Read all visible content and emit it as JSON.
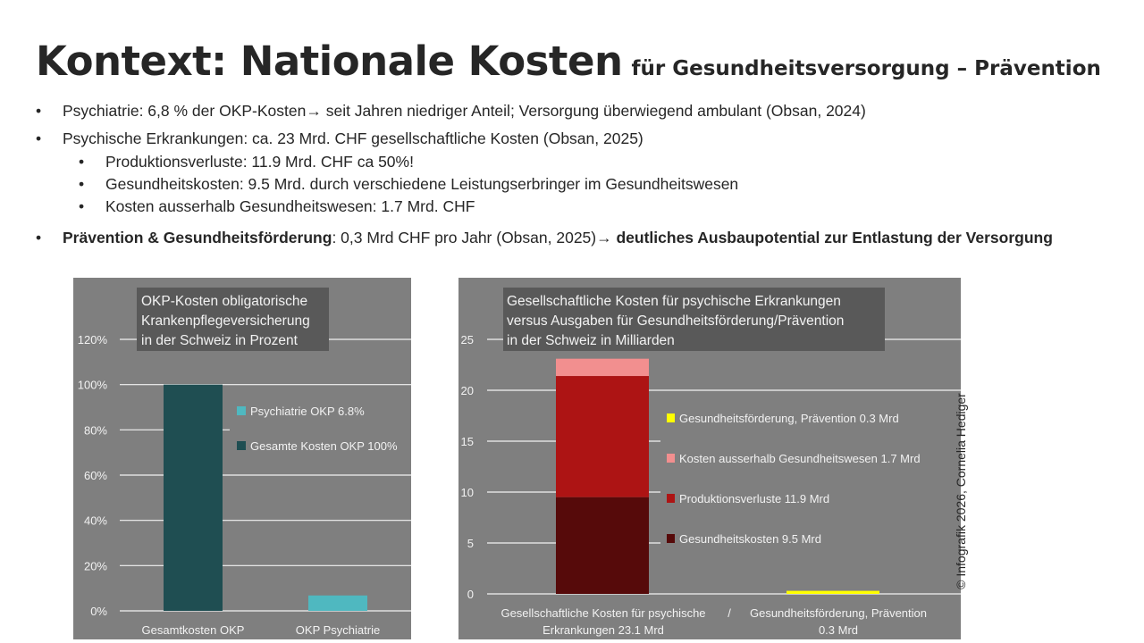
{
  "title": {
    "main": "Kontext: Nationale Kosten",
    "sub": "für  Gesundheitsversorgung – Prävention"
  },
  "bullets": [
    {
      "level": 1,
      "text": "Psychiatrie: 6,8 % der OKP-Kosten→ seit Jahren niedriger Anteil; Versorgung überwiegend ambulant (Obsan, 2024)"
    },
    {
      "level": 1,
      "text": "Psychische Erkrankungen: ca. 23 Mrd. CHF gesellschaftliche Kosten (Obsan, 2025)"
    },
    {
      "level": 2,
      "text": "Produktionsverluste: 11.9 Mrd. CHF ca 50%!"
    },
    {
      "level": 2,
      "text": "Gesundheitskosten: 9.5 Mrd. durch verschiedene Leistungserbringer im Gesundheitswesen"
    },
    {
      "level": 2,
      "text": "Kosten ausserhalb Gesundheitswesen: 1.7 Mrd. CHF"
    }
  ],
  "last_bullet": {
    "bold1": "Prävention & Gesundheitsförderung",
    "mid": ": 0,3 Mrd CHF pro Jahr (Obsan, 2025)→ ",
    "bold2": "deutliches Ausbaupotential zur Entlastung der Versorgung"
  },
  "copyright": "© Infografik 2026, Cornelia Hediger",
  "chart_data": [
    {
      "type": "bar",
      "title": [
        "OKP-Kosten obligatorische",
        "Krankenpflegeversicherung",
        "in der Schweiz in Prozent"
      ],
      "categories": [
        "Gesamtkosten OKP",
        "OKP Psychiatrie"
      ],
      "values": [
        100,
        6.8
      ],
      "colors": [
        "#1f4e52",
        "#4fb8c0"
      ],
      "ylim": [
        0,
        120
      ],
      "yticks": [
        0,
        20,
        40,
        60,
        80,
        100,
        120
      ],
      "ytick_labels": [
        "0%",
        "20%",
        "40%",
        "60%",
        "80%",
        "100%",
        "120%"
      ],
      "grid": true,
      "legend": [
        {
          "label": "Psychiatrie OKP  6.8%",
          "color": "#4fb8c0"
        },
        {
          "label": "Gesamte Kosten OKP 100%",
          "color": "#1f4e52"
        }
      ]
    },
    {
      "type": "bar",
      "stacked": true,
      "title": [
        "Gesellschaftliche Kosten für psychische Erkrankungen",
        "versus Ausgaben für Gesundheitsförderung/Prävention",
        "in der Schweiz in Milliarden"
      ],
      "categories": [
        [
          "Gesellschaftliche Kosten für psychische",
          "Erkrankungen 23.1 Mrd"
        ],
        [
          "Gesundheitsförderung, Prävention",
          "0.3 Mrd"
        ]
      ],
      "separator": "/",
      "series": [
        {
          "name": "Gesundheitskosten 9.5 Mrd",
          "values": [
            9.5,
            0
          ],
          "color": "#560a0a"
        },
        {
          "name": "Produktionsverluste 11.9 Mrd",
          "values": [
            11.9,
            0
          ],
          "color": "#ad1414"
        },
        {
          "name": "Kosten ausserhalb Gesundheitswesen 1.7 Mrd",
          "values": [
            1.7,
            0
          ],
          "color": "#f28f8f"
        },
        {
          "name": "Gesundheitsförderung, Prävention 0.3 Mrd",
          "values": [
            0,
            0.3
          ],
          "color": "#ffff00"
        }
      ],
      "ylim": [
        0,
        25
      ],
      "yticks": [
        0,
        5,
        10,
        15,
        20,
        25
      ],
      "grid": true,
      "legend_order": [
        3,
        2,
        1,
        0
      ]
    }
  ]
}
